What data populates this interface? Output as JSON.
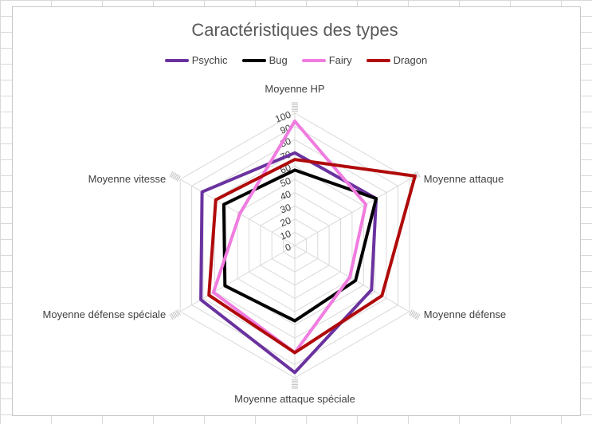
{
  "chart_data": {
    "type": "radar",
    "title": "Caractéristiques des types",
    "axes": [
      "Moyenne HP",
      "Moyenne attaque",
      "Moyenne défense",
      "Moyenne attaque spéciale",
      "Moyenne défense spéciale",
      "Moyenne vitesse"
    ],
    "rmin": 0,
    "rmax": 100,
    "ticks": [
      0,
      10,
      20,
      30,
      40,
      50,
      60,
      70,
      80,
      90,
      100
    ],
    "grid": true,
    "legend_position": "top",
    "series": [
      {
        "name": "Psychic",
        "color": "#6a329f",
        "values": [
          70,
          71,
          67,
          96,
          82,
          81
        ]
      },
      {
        "name": "Bug",
        "color": "#000000",
        "values": [
          57,
          71,
          53,
          57,
          61,
          62
        ]
      },
      {
        "name": "Fairy",
        "color": "#f07ce0",
        "values": [
          94,
          62,
          48,
          81,
          71,
          48
        ]
      },
      {
        "name": "Dragon",
        "color": "#b00a0a",
        "values": [
          65,
          105,
          76,
          81,
          75,
          69
        ]
      }
    ]
  }
}
